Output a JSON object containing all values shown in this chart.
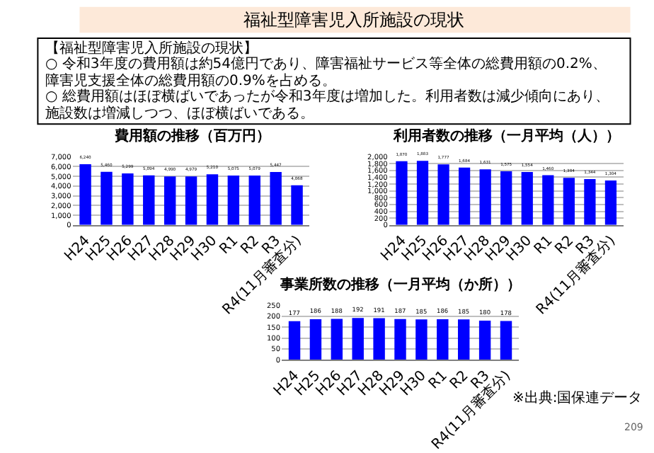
{
  "chart_data": [
    {
      "type": "other",
      "title": "福祉型障害児入所施設の現状",
      "annotations": [
        "【福祉型障害児入所施設の現状】",
        "○ 令和3年度の費用額は約54億円であり、障害福祉サービス等全体の総費用額の0.2%、",
        "障害児支援全体の総費用額の0.9%を占める。",
        "○ 総費用額はほぼ横ばいであったが令和3年度は増加した。利用者数は減少傾向にあり、",
        "施設数は増減しつつ、ほぼ横ばいである。"
      ]
    },
    {
      "type": "bar",
      "title": "費用額の推移（百万円）",
      "categories": [
        "H24",
        "H25",
        "H26",
        "H27",
        "H28",
        "H29",
        "H30",
        "R1",
        "R2",
        "R3",
        "R4(11月審査分)"
      ],
      "values": [
        6240,
        5460,
        5299,
        5094,
        4990,
        4979,
        5210,
        5075,
        5079,
        5447,
        4068
      ],
      "value_labels": [
        "6,240",
        "5,460",
        "5,299",
        "5,094",
        "4,990",
        "4,979",
        "5,210",
        "5,075",
        "5,079",
        "5,447",
        "4,068"
      ],
      "color": "#0000ff",
      "grid": "y",
      "ylim": [
        0,
        7000
      ],
      "yticks": [
        0,
        {
          "value": 1000,
          "label": "1,000"
        },
        {
          "value": 2000,
          "label": "2,000"
        },
        {
          "value": 3000,
          "label": "3,000"
        },
        {
          "value": 4000,
          "label": "4,000"
        },
        {
          "value": 5000,
          "label": "5,000"
        },
        {
          "value": 6000,
          "label": "6,000"
        },
        {
          "value": 7000,
          "label": "7,000"
        }
      ]
    },
    {
      "type": "bar",
      "title": "利用者数の推移（一月平均（人））",
      "categories": [
        "H24",
        "H25",
        "H26",
        "H27",
        "H28",
        "H29",
        "H30",
        "R1",
        "R2",
        "R3",
        "R4(11月審査分)"
      ],
      "values": [
        1870,
        1883,
        1777,
        1684,
        1631,
        1575,
        1554,
        1460,
        1384,
        1344,
        1304
      ],
      "value_labels": [
        "1,870",
        "1,883",
        "1,777",
        "1,684",
        "1,631",
        "1,575",
        "1,554",
        "1,460",
        "1,384",
        "1,344",
        "1,304"
      ],
      "color": "#0000ff",
      "grid": "y",
      "ylim": [
        0,
        2000
      ],
      "yticks": [
        0,
        200,
        400,
        600,
        800,
        {
          "value": 1000,
          "label": "1,000"
        },
        {
          "value": 1200,
          "label": "1,200"
        },
        {
          "value": 1400,
          "label": "1,400"
        },
        {
          "value": 1600,
          "label": "1,600"
        },
        {
          "value": 1800,
          "label": "1,800"
        },
        {
          "value": 2000,
          "label": "2,000"
        }
      ]
    },
    {
      "type": "bar",
      "title": "事業所数の推移（一月平均（か所））",
      "categories": [
        "H24",
        "H25",
        "H26",
        "H27",
        "H28",
        "H29",
        "H30",
        "R1",
        "R2",
        "R3",
        "R4(11月審査分)"
      ],
      "values": [
        177,
        186,
        188,
        192,
        191,
        187,
        185,
        186,
        185,
        180,
        178
      ],
      "color": "#0000ff",
      "data_labels": true,
      "grid": "y",
      "ylim": [
        0,
        250
      ],
      "yticks": [
        0,
        50,
        100,
        150,
        200,
        250
      ],
      "annotations": [
        "※出典:国保連データ",
        "209"
      ]
    }
  ]
}
